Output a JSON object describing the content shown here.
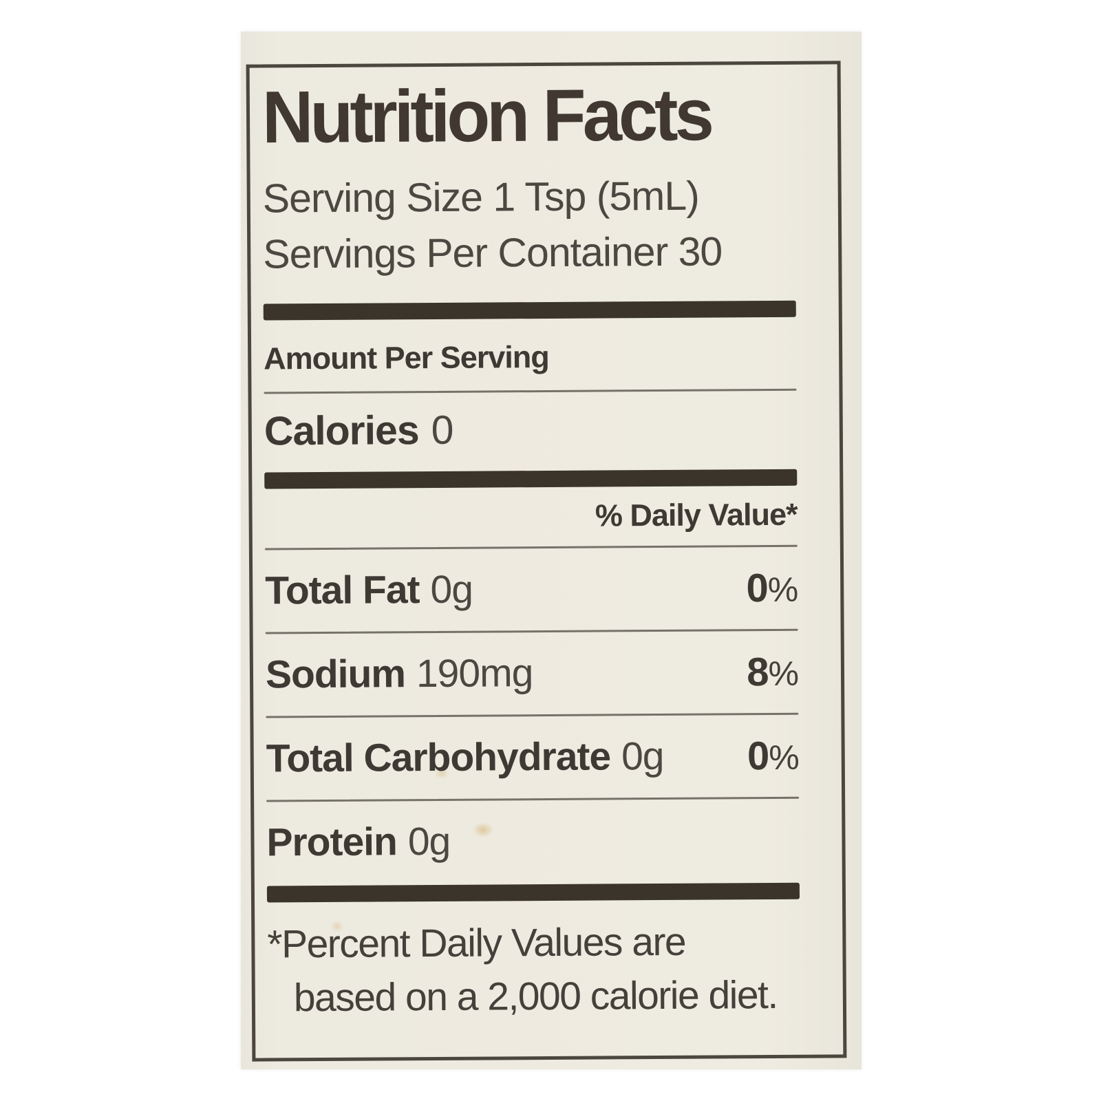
{
  "label": {
    "title": "Nutrition Facts",
    "serving_size": "Serving Size 1 Tsp (5mL)",
    "servings_per_container": "Servings Per Container 30",
    "amount_per_serving": "Amount Per Serving",
    "calories_label": "Calories",
    "calories_value": "0",
    "daily_value_header": "% Daily Value*",
    "rows": [
      {
        "name": "Total Fat",
        "amount": "0g",
        "dv_number": "0",
        "dv_symbol": "%"
      },
      {
        "name": "Sodium",
        "amount": "190mg",
        "dv_number": "8",
        "dv_symbol": "%"
      },
      {
        "name": "Total Carbohydrate",
        "amount": "0g",
        "dv_number": "0",
        "dv_symbol": "%"
      },
      {
        "name": "Protein",
        "amount": "0g",
        "dv_number": "",
        "dv_symbol": ""
      }
    ],
    "footnote_line1": "*Percent Daily Values are",
    "footnote_line2": "based on a 2,000 calorie diet.",
    "colors": {
      "page_bg": "#ffffff",
      "label_bg": "#edeae0",
      "text": "#3e3933",
      "rule_thin": "#76726a",
      "rule_thick": "#3a342b",
      "border": "#4b463e",
      "stain": "#c79a3a"
    }
  }
}
